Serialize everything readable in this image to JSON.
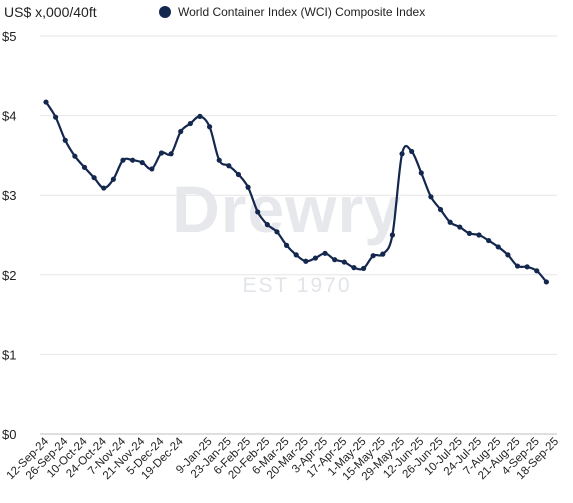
{
  "legend": {
    "label": "World Container Index (WCI) Composite Index",
    "marker_color": "#14274e"
  },
  "watermark": {
    "brand": "Drewry",
    "tagline": "EST 1970"
  },
  "chart_data": {
    "type": "line",
    "y_unit_label": "US$ x,000/40ft",
    "ylim": [
      0,
      5
    ],
    "y_ticks": [
      "$0",
      "$1",
      "$2",
      "$3",
      "$4",
      "$5"
    ],
    "grid": true,
    "legend_position": "top",
    "series_color": "#14274e",
    "x_tick_labels": [
      "12-Sep-24",
      "26-Sep-24",
      "10-Oct-24",
      "24-Oct-24",
      "7-Nov-24",
      "21-Nov-24",
      "5-Dec-24",
      "19-Dec-24",
      "9-Jan-25",
      "23-Jan-25",
      "6-Feb-25",
      "20-Feb-25",
      "6-Mar-25",
      "20-Mar-25",
      "3-Apr-25",
      "17-Apr-25",
      "1-May-25",
      "15-May-25",
      "29-May-25",
      "12-Jun-25",
      "26-Jun-25",
      "10-Jul-25",
      "24-Jul-25",
      "7-Aug-25",
      "21-Aug-25",
      "4-Sep-25",
      "18-Sep-25"
    ],
    "series": [
      {
        "name": "World Container Index (WCI) Composite Index",
        "points": [
          [
            "12-Sep-24",
            4.17
          ],
          [
            "19-Sep-24",
            3.98
          ],
          [
            "26-Sep-24",
            3.69
          ],
          [
            "3-Oct-24",
            3.49
          ],
          [
            "10-Oct-24",
            3.35
          ],
          [
            "17-Oct-24",
            3.22
          ],
          [
            "24-Oct-24",
            3.09
          ],
          [
            "31-Oct-24",
            3.2
          ],
          [
            "7-Nov-24",
            3.44
          ],
          [
            "14-Nov-24",
            3.44
          ],
          [
            "21-Nov-24",
            3.41
          ],
          [
            "28-Nov-24",
            3.33
          ],
          [
            "5-Dec-24",
            3.53
          ],
          [
            "12-Dec-24",
            3.52
          ],
          [
            "19-Dec-24",
            3.8
          ],
          [
            "26-Dec-24",
            3.9
          ],
          [
            "2-Jan-25",
            3.99
          ],
          [
            "9-Jan-25",
            3.86
          ],
          [
            "16-Jan-25",
            3.44
          ],
          [
            "23-Jan-25",
            3.37
          ],
          [
            "30-Jan-25",
            3.26
          ],
          [
            "6-Feb-25",
            3.1
          ],
          [
            "13-Feb-25",
            2.79
          ],
          [
            "20-Feb-25",
            2.63
          ],
          [
            "27-Feb-25",
            2.54
          ],
          [
            "6-Mar-25",
            2.37
          ],
          [
            "13-Mar-25",
            2.25
          ],
          [
            "20-Mar-25",
            2.17
          ],
          [
            "27-Mar-25",
            2.21
          ],
          [
            "3-Apr-25",
            2.27
          ],
          [
            "10-Apr-25",
            2.19
          ],
          [
            "17-Apr-25",
            2.16
          ],
          [
            "24-Apr-25",
            2.09
          ],
          [
            "1-May-25",
            2.08
          ],
          [
            "8-May-25",
            2.24
          ],
          [
            "15-May-25",
            2.26
          ],
          [
            "22-May-25",
            2.5
          ],
          [
            "29-May-25",
            3.52
          ],
          [
            "5-Jun-25",
            3.55
          ],
          [
            "12-Jun-25",
            3.28
          ],
          [
            "19-Jun-25",
            2.98
          ],
          [
            "26-Jun-25",
            2.82
          ],
          [
            "3-Jul-25",
            2.66
          ],
          [
            "10-Jul-25",
            2.6
          ],
          [
            "17-Jul-25",
            2.52
          ],
          [
            "24-Jul-25",
            2.5
          ],
          [
            "31-Jul-25",
            2.43
          ],
          [
            "7-Aug-25",
            2.35
          ],
          [
            "14-Aug-25",
            2.25
          ],
          [
            "21-Aug-25",
            2.11
          ],
          [
            "28-Aug-25",
            2.1
          ],
          [
            "4-Sep-25",
            2.05
          ],
          [
            "11-Sep-25",
            1.91
          ]
        ]
      }
    ]
  }
}
